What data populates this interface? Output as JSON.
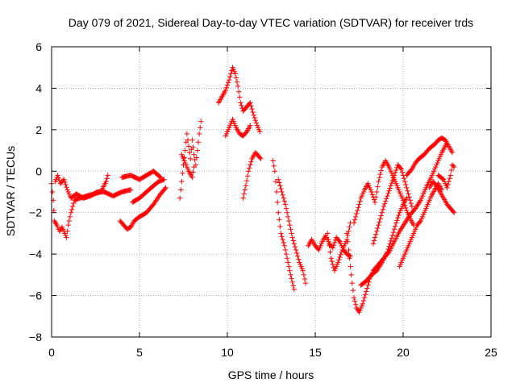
{
  "chart_data": {
    "type": "scatter",
    "title": "Day 079 of 2021, Sidereal Day-to-day VTEC variation (SDTVAR) for receiver trds",
    "xlabel": "GPS time / hours",
    "ylabel": "SDTVAR / TECUs",
    "xlim": [
      0,
      25
    ],
    "ylim": [
      -8,
      6
    ],
    "xticks": [
      0,
      5,
      10,
      15,
      20,
      25
    ],
    "yticks": [
      -8,
      -6,
      -4,
      -2,
      0,
      2,
      4,
      6
    ],
    "grid": true,
    "marker": "+",
    "color": "#ff0000",
    "series": [
      {
        "name": "SDTVAR",
        "tracks": [
          [
            [
              0.0,
              -0.6
            ],
            [
              0.1,
              -1.4
            ],
            [
              0.15,
              -2.4
            ],
            [
              0.3,
              -2.6
            ],
            [
              0.45,
              -2.9
            ],
            [
              0.6,
              -2.7
            ],
            [
              0.75,
              -3.0
            ],
            [
              0.85,
              -3.2
            ],
            [
              0.95,
              -2.6
            ],
            [
              1.1,
              -2.0
            ],
            [
              1.3,
              -1.4
            ],
            [
              1.6,
              -1.3
            ],
            [
              2.0,
              -1.2
            ],
            [
              2.4,
              -1.1
            ],
            [
              2.8,
              -1.0
            ],
            [
              3.1,
              -0.5
            ],
            [
              3.2,
              -0.2
            ]
          ],
          [
            [
              0.2,
              -0.5
            ],
            [
              0.35,
              -0.2
            ],
            [
              0.5,
              -0.6
            ],
            [
              0.7,
              -0.4
            ],
            [
              0.9,
              -0.9
            ],
            [
              1.1,
              -1.3
            ],
            [
              1.4,
              -1.1
            ],
            [
              1.8,
              -1.3
            ],
            [
              2.2,
              -1.2
            ],
            [
              2.6,
              -1.0
            ],
            [
              3.0,
              -1.0
            ],
            [
              3.5,
              -1.2
            ],
            [
              4.0,
              -1.0
            ],
            [
              4.5,
              -0.9
            ]
          ],
          [
            [
              3.9,
              -2.4
            ],
            [
              4.1,
              -2.6
            ],
            [
              4.3,
              -2.8
            ],
            [
              4.5,
              -2.7
            ],
            [
              4.7,
              -2.4
            ],
            [
              5.0,
              -2.2
            ],
            [
              5.4,
              -2.0
            ],
            [
              5.8,
              -1.6
            ],
            [
              6.2,
              -1.1
            ],
            [
              6.5,
              -0.8
            ]
          ],
          [
            [
              4.0,
              -0.3
            ],
            [
              4.5,
              -0.2
            ],
            [
              5.0,
              -0.4
            ],
            [
              5.4,
              -0.2
            ],
            [
              5.8,
              0.0
            ],
            [
              6.2,
              -0.3
            ]
          ],
          [
            [
              4.6,
              -1.5
            ],
            [
              5.0,
              -1.3
            ],
            [
              5.4,
              -1.0
            ],
            [
              5.8,
              -0.7
            ],
            [
              6.1,
              -0.5
            ],
            [
              6.4,
              -0.4
            ]
          ],
          [
            [
              7.3,
              -1.3
            ],
            [
              7.4,
              -0.5
            ],
            [
              7.5,
              0.3
            ],
            [
              7.6,
              1.0
            ],
            [
              7.7,
              1.8
            ],
            [
              7.8,
              1.2
            ],
            [
              7.9,
              0.6
            ],
            [
              8.0,
              1.5
            ],
            [
              8.1,
              0.8
            ],
            [
              8.2,
              0.3
            ],
            [
              8.3,
              1.0
            ],
            [
              8.4,
              1.8
            ],
            [
              8.5,
              2.4
            ]
          ],
          [
            [
              7.4,
              0.8
            ],
            [
              7.6,
              0.4
            ],
            [
              7.8,
              0.0
            ],
            [
              8.0,
              -0.3
            ],
            [
              8.1,
              0.2
            ]
          ],
          [
            [
              9.5,
              3.3
            ],
            [
              9.7,
              3.6
            ],
            [
              9.9,
              3.9
            ],
            [
              10.1,
              4.4
            ],
            [
              10.3,
              5.0
            ],
            [
              10.45,
              4.7
            ],
            [
              10.6,
              4.1
            ],
            [
              10.75,
              3.3
            ],
            [
              10.9,
              2.9
            ],
            [
              11.1,
              3.1
            ],
            [
              11.3,
              3.3
            ],
            [
              11.5,
              2.7
            ],
            [
              11.7,
              2.2
            ],
            [
              11.85,
              1.9
            ]
          ],
          [
            [
              9.9,
              1.7
            ],
            [
              10.1,
              2.1
            ],
            [
              10.3,
              2.5
            ],
            [
              10.5,
              2.1
            ],
            [
              10.7,
              1.8
            ],
            [
              10.9,
              1.7
            ],
            [
              11.1,
              1.9
            ],
            [
              11.3,
              2.2
            ]
          ],
          [
            [
              10.9,
              -1.3
            ],
            [
              11.05,
              -0.7
            ],
            [
              11.2,
              0.0
            ],
            [
              11.4,
              0.6
            ],
            [
              11.6,
              0.9
            ],
            [
              11.8,
              0.7
            ],
            [
              11.9,
              0.6
            ]
          ],
          [
            [
              12.6,
              0.5
            ],
            [
              12.7,
              0.0
            ],
            [
              12.8,
              -1.0
            ],
            [
              12.9,
              -2.0
            ],
            [
              13.05,
              -3.0
            ],
            [
              13.25,
              -3.6
            ],
            [
              13.45,
              -4.4
            ],
            [
              13.6,
              -5.0
            ],
            [
              13.8,
              -5.7
            ]
          ],
          [
            [
              12.9,
              -0.4
            ],
            [
              13.1,
              -1.0
            ],
            [
              13.3,
              -1.6
            ],
            [
              13.5,
              -2.4
            ],
            [
              13.7,
              -3.2
            ],
            [
              13.9,
              -3.8
            ],
            [
              14.1,
              -4.4
            ],
            [
              14.3,
              -4.8
            ],
            [
              14.45,
              -5.4
            ]
          ],
          [
            [
              14.6,
              -3.6
            ],
            [
              14.8,
              -3.3
            ],
            [
              15.0,
              -3.6
            ],
            [
              15.2,
              -3.8
            ],
            [
              15.4,
              -3.4
            ],
            [
              15.6,
              -3.1
            ],
            [
              15.8,
              -3.5
            ],
            [
              16.0,
              -3.7
            ],
            [
              16.2,
              -3.2
            ],
            [
              16.4,
              -3.4
            ],
            [
              16.6,
              -3.8
            ],
            [
              16.8,
              -4.0
            ],
            [
              17.0,
              -4.1
            ]
          ],
          [
            [
              15.7,
              -3.0
            ],
            [
              15.9,
              -4.2
            ],
            [
              16.1,
              -4.8
            ],
            [
              16.3,
              -4.4
            ],
            [
              16.5,
              -3.9
            ],
            [
              16.8,
              -3.3
            ],
            [
              17.0,
              -2.5
            ]
          ],
          [
            [
              16.8,
              -3.0
            ],
            [
              16.9,
              -3.8
            ],
            [
              17.0,
              -4.6
            ],
            [
              17.1,
              -5.4
            ],
            [
              17.2,
              -6.1
            ],
            [
              17.35,
              -6.6
            ],
            [
              17.5,
              -6.8
            ],
            [
              17.7,
              -6.4
            ],
            [
              17.9,
              -5.8
            ],
            [
              18.1,
              -5.2
            ],
            [
              18.3,
              -4.8
            ],
            [
              18.6,
              -4.5
            ],
            [
              18.9,
              -4.2
            ],
            [
              19.2,
              -3.9
            ],
            [
              19.5,
              -3.4
            ],
            [
              19.8,
              -2.9
            ],
            [
              20.1,
              -2.5
            ],
            [
              20.4,
              -2.1
            ],
            [
              20.7,
              -1.8
            ],
            [
              21.0,
              -1.4
            ],
            [
              21.3,
              -0.8
            ],
            [
              21.6,
              -0.3
            ],
            [
              21.9,
              0.3
            ],
            [
              22.2,
              0.9
            ],
            [
              22.45,
              1.3
            ]
          ],
          [
            [
              17.2,
              -2.5
            ],
            [
              17.4,
              -1.9
            ],
            [
              17.6,
              -1.3
            ],
            [
              17.8,
              -0.9
            ],
            [
              18.0,
              -0.6
            ],
            [
              18.2,
              -1.0
            ],
            [
              18.4,
              -1.5
            ],
            [
              18.6,
              -0.5
            ],
            [
              18.8,
              0.2
            ],
            [
              19.0,
              0.5
            ],
            [
              19.2,
              0.2
            ],
            [
              19.4,
              -0.2
            ],
            [
              19.6,
              -0.6
            ],
            [
              19.8,
              -1.0
            ],
            [
              20.0,
              -1.4
            ],
            [
              20.2,
              -1.9
            ],
            [
              20.4,
              -2.3
            ],
            [
              20.6,
              -2.6
            ]
          ],
          [
            [
              17.6,
              -5.5
            ],
            [
              17.9,
              -5.3
            ],
            [
              18.2,
              -5.0
            ],
            [
              18.5,
              -4.8
            ],
            [
              18.8,
              -4.4
            ],
            [
              19.1,
              -3.9
            ],
            [
              19.4,
              -3.1
            ],
            [
              19.6,
              -2.5
            ],
            [
              19.8,
              -2.0
            ],
            [
              20.0,
              -1.6
            ],
            [
              20.2,
              -1.3
            ]
          ],
          [
            [
              18.3,
              -3.5
            ],
            [
              18.5,
              -2.9
            ],
            [
              18.7,
              -2.3
            ],
            [
              18.9,
              -1.7
            ],
            [
              19.1,
              -1.2
            ],
            [
              19.3,
              -0.7
            ],
            [
              19.5,
              -0.2
            ],
            [
              19.7,
              0.3
            ],
            [
              19.9,
              0.1
            ],
            [
              20.1,
              -0.5
            ],
            [
              20.3,
              -1.1
            ],
            [
              20.5,
              -1.7
            ]
          ],
          [
            [
              19.8,
              -4.6
            ],
            [
              20.0,
              -4.2
            ],
            [
              20.2,
              -3.8
            ],
            [
              20.4,
              -3.4
            ],
            [
              20.6,
              -3.0
            ],
            [
              20.8,
              -2.6
            ],
            [
              21.0,
              -2.4
            ],
            [
              21.2,
              -2.0
            ],
            [
              21.4,
              -1.6
            ],
            [
              21.6,
              -1.2
            ],
            [
              21.8,
              -0.9
            ],
            [
              22.0,
              -0.6
            ],
            [
              22.2,
              -0.9
            ]
          ],
          [
            [
              20.2,
              -0.2
            ],
            [
              20.5,
              0.1
            ],
            [
              20.7,
              0.4
            ],
            [
              20.9,
              0.6
            ],
            [
              21.2,
              0.8
            ],
            [
              21.5,
              1.1
            ],
            [
              21.8,
              1.3
            ],
            [
              22.0,
              1.5
            ],
            [
              22.2,
              1.6
            ],
            [
              22.4,
              1.5
            ],
            [
              22.6,
              1.2
            ],
            [
              22.8,
              0.9
            ]
          ],
          [
            [
              21.5,
              -0.8
            ],
            [
              21.7,
              -0.5
            ],
            [
              21.9,
              -0.7
            ],
            [
              22.1,
              -1.0
            ],
            [
              22.3,
              -1.3
            ],
            [
              22.5,
              -1.6
            ],
            [
              22.7,
              -1.8
            ],
            [
              22.9,
              -2.0
            ]
          ],
          [
            [
              22.0,
              -0.2
            ],
            [
              22.3,
              -0.4
            ],
            [
              22.5,
              -0.8
            ],
            [
              22.7,
              -0.2
            ],
            [
              22.8,
              0.3
            ],
            [
              22.9,
              0.2
            ]
          ]
        ]
      }
    ]
  }
}
